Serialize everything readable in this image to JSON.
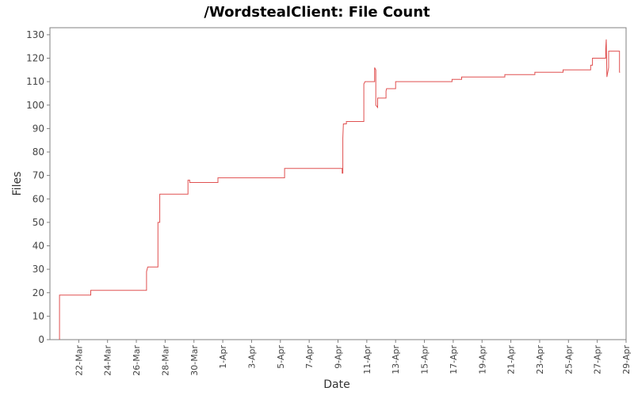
{
  "chart_data": {
    "type": "line",
    "title": "/WordstealClient: File Count",
    "xlabel": "Date",
    "ylabel": "Files",
    "ylim": [
      0,
      133
    ],
    "xlim": [
      "2024-03-20",
      "2024-04-29"
    ],
    "y_ticks": [
      0,
      10,
      20,
      30,
      40,
      50,
      60,
      70,
      80,
      90,
      100,
      110,
      120,
      130
    ],
    "x_ticks": [
      {
        "date": "2024-03-22",
        "label": "22-Mar"
      },
      {
        "date": "2024-03-24",
        "label": "24-Mar"
      },
      {
        "date": "2024-03-26",
        "label": "26-Mar"
      },
      {
        "date": "2024-03-28",
        "label": "28-Mar"
      },
      {
        "date": "2024-03-30",
        "label": "30-Mar"
      },
      {
        "date": "2024-04-01",
        "label": "1-Apr"
      },
      {
        "date": "2024-04-03",
        "label": "3-Apr"
      },
      {
        "date": "2024-04-05",
        "label": "5-Apr"
      },
      {
        "date": "2024-04-07",
        "label": "7-Apr"
      },
      {
        "date": "2024-04-09",
        "label": "9-Apr"
      },
      {
        "date": "2024-04-11",
        "label": "11-Apr"
      },
      {
        "date": "2024-04-13",
        "label": "13-Apr"
      },
      {
        "date": "2024-04-15",
        "label": "15-Apr"
      },
      {
        "date": "2024-04-17",
        "label": "17-Apr"
      },
      {
        "date": "2024-04-19",
        "label": "19-Apr"
      },
      {
        "date": "2024-04-21",
        "label": "21-Apr"
      },
      {
        "date": "2024-04-23",
        "label": "23-Apr"
      },
      {
        "date": "2024-04-25",
        "label": "25-Apr"
      },
      {
        "date": "2024-04-27",
        "label": "27-Apr"
      },
      {
        "date": "2024-04-29",
        "label": "29-Apr"
      }
    ],
    "grid": false,
    "line_color": "#e05050",
    "series": [
      {
        "points": [
          [
            "2024-03-20 16:00",
            0
          ],
          [
            "2024-03-20 16:00",
            19
          ],
          [
            "2024-03-22 20:00",
            19
          ],
          [
            "2024-03-22 20:00",
            21
          ],
          [
            "2024-03-26 17:00",
            21
          ],
          [
            "2024-03-26 17:00",
            29
          ],
          [
            "2024-03-26 19:00",
            31
          ],
          [
            "2024-03-27 12:00",
            31
          ],
          [
            "2024-03-27 12:00",
            50
          ],
          [
            "2024-03-27 15:00",
            50
          ],
          [
            "2024-03-27 15:00",
            62
          ],
          [
            "2024-03-29 14:00",
            62
          ],
          [
            "2024-03-29 14:00",
            68
          ],
          [
            "2024-03-29 17:00",
            68
          ],
          [
            "2024-03-29 17:00",
            67
          ],
          [
            "2024-03-31 16:00",
            67
          ],
          [
            "2024-03-31 16:00",
            69
          ],
          [
            "2024-04-05 07:00",
            69
          ],
          [
            "2024-04-05 07:00",
            73
          ],
          [
            "2024-04-09 07:00",
            73
          ],
          [
            "2024-04-09 07:00",
            71
          ],
          [
            "2024-04-09 08:00",
            71
          ],
          [
            "2024-04-09 08:00",
            86
          ],
          [
            "2024-04-09 09:00",
            92
          ],
          [
            "2024-04-09 14:00",
            92
          ],
          [
            "2024-04-09 14:00",
            93
          ],
          [
            "2024-04-10 19:00",
            93
          ],
          [
            "2024-04-10 19:00",
            109
          ],
          [
            "2024-04-10 21:00",
            110
          ],
          [
            "2024-04-11 13:00",
            110
          ],
          [
            "2024-04-11 13:00",
            116
          ],
          [
            "2024-04-11 15:00",
            115
          ],
          [
            "2024-04-11 15:00",
            100
          ],
          [
            "2024-04-11 18:00",
            99
          ],
          [
            "2024-04-11 18:00",
            103
          ],
          [
            "2024-04-12 08:00",
            103
          ],
          [
            "2024-04-12 08:00",
            106
          ],
          [
            "2024-04-12 09:00",
            107
          ],
          [
            "2024-04-13 00:00",
            107
          ],
          [
            "2024-04-13 00:00",
            110
          ],
          [
            "2024-04-16 22:00",
            110
          ],
          [
            "2024-04-16 22:00",
            111
          ],
          [
            "2024-04-17 14:00",
            111
          ],
          [
            "2024-04-17 14:00",
            112
          ],
          [
            "2024-04-20 14:00",
            112
          ],
          [
            "2024-04-20 14:00",
            113
          ],
          [
            "2024-04-22 16:00",
            113
          ],
          [
            "2024-04-22 16:00",
            114
          ],
          [
            "2024-04-24 15:00",
            114
          ],
          [
            "2024-04-24 15:00",
            115
          ],
          [
            "2024-04-26 13:00",
            115
          ],
          [
            "2024-04-26 13:00",
            117
          ],
          [
            "2024-04-26 16:00",
            117
          ],
          [
            "2024-04-26 16:00",
            120
          ],
          [
            "2024-04-27 14:00",
            120
          ],
          [
            "2024-04-27 14:00",
            124
          ],
          [
            "2024-04-27 15:00",
            128
          ],
          [
            "2024-04-27 16:00",
            112
          ],
          [
            "2024-04-27 19:00",
            116
          ],
          [
            "2024-04-27 19:00",
            123
          ],
          [
            "2024-04-28 13:00",
            123
          ],
          [
            "2024-04-28 13:00",
            114
          ],
          [
            "2024-04-28 14:00",
            114
          ]
        ]
      }
    ]
  }
}
